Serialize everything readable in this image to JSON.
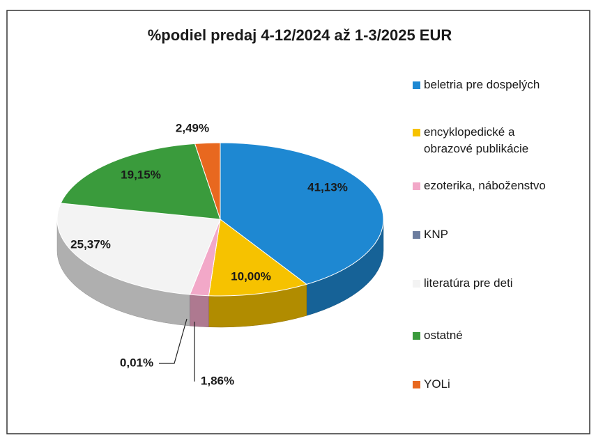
{
  "chart_data": {
    "type": "pie",
    "title": "%podiel predaj 4-12/2024 až 1-3/2025 EUR",
    "categories": [
      "beletria pre dospelých",
      "encyklopedické a obrazové publikácie",
      "ezoterika, náboženstvo",
      "KNP",
      "literatúra pre deti",
      "ostatné",
      "YOLi"
    ],
    "values": [
      41.13,
      10.0,
      1.86,
      0.01,
      25.37,
      19.15,
      2.49
    ],
    "value_labels": [
      "41,13%",
      "10,00%",
      "1,86%",
      "0,01%",
      "25,37%",
      "19,15%",
      "2,49%"
    ],
    "colors": [
      "#1e88d2",
      "#f6c200",
      "#f2a8c8",
      "#6c7d9e",
      "#f3f3f3",
      "#3a9b3c",
      "#e8681f"
    ],
    "legend": "right"
  }
}
